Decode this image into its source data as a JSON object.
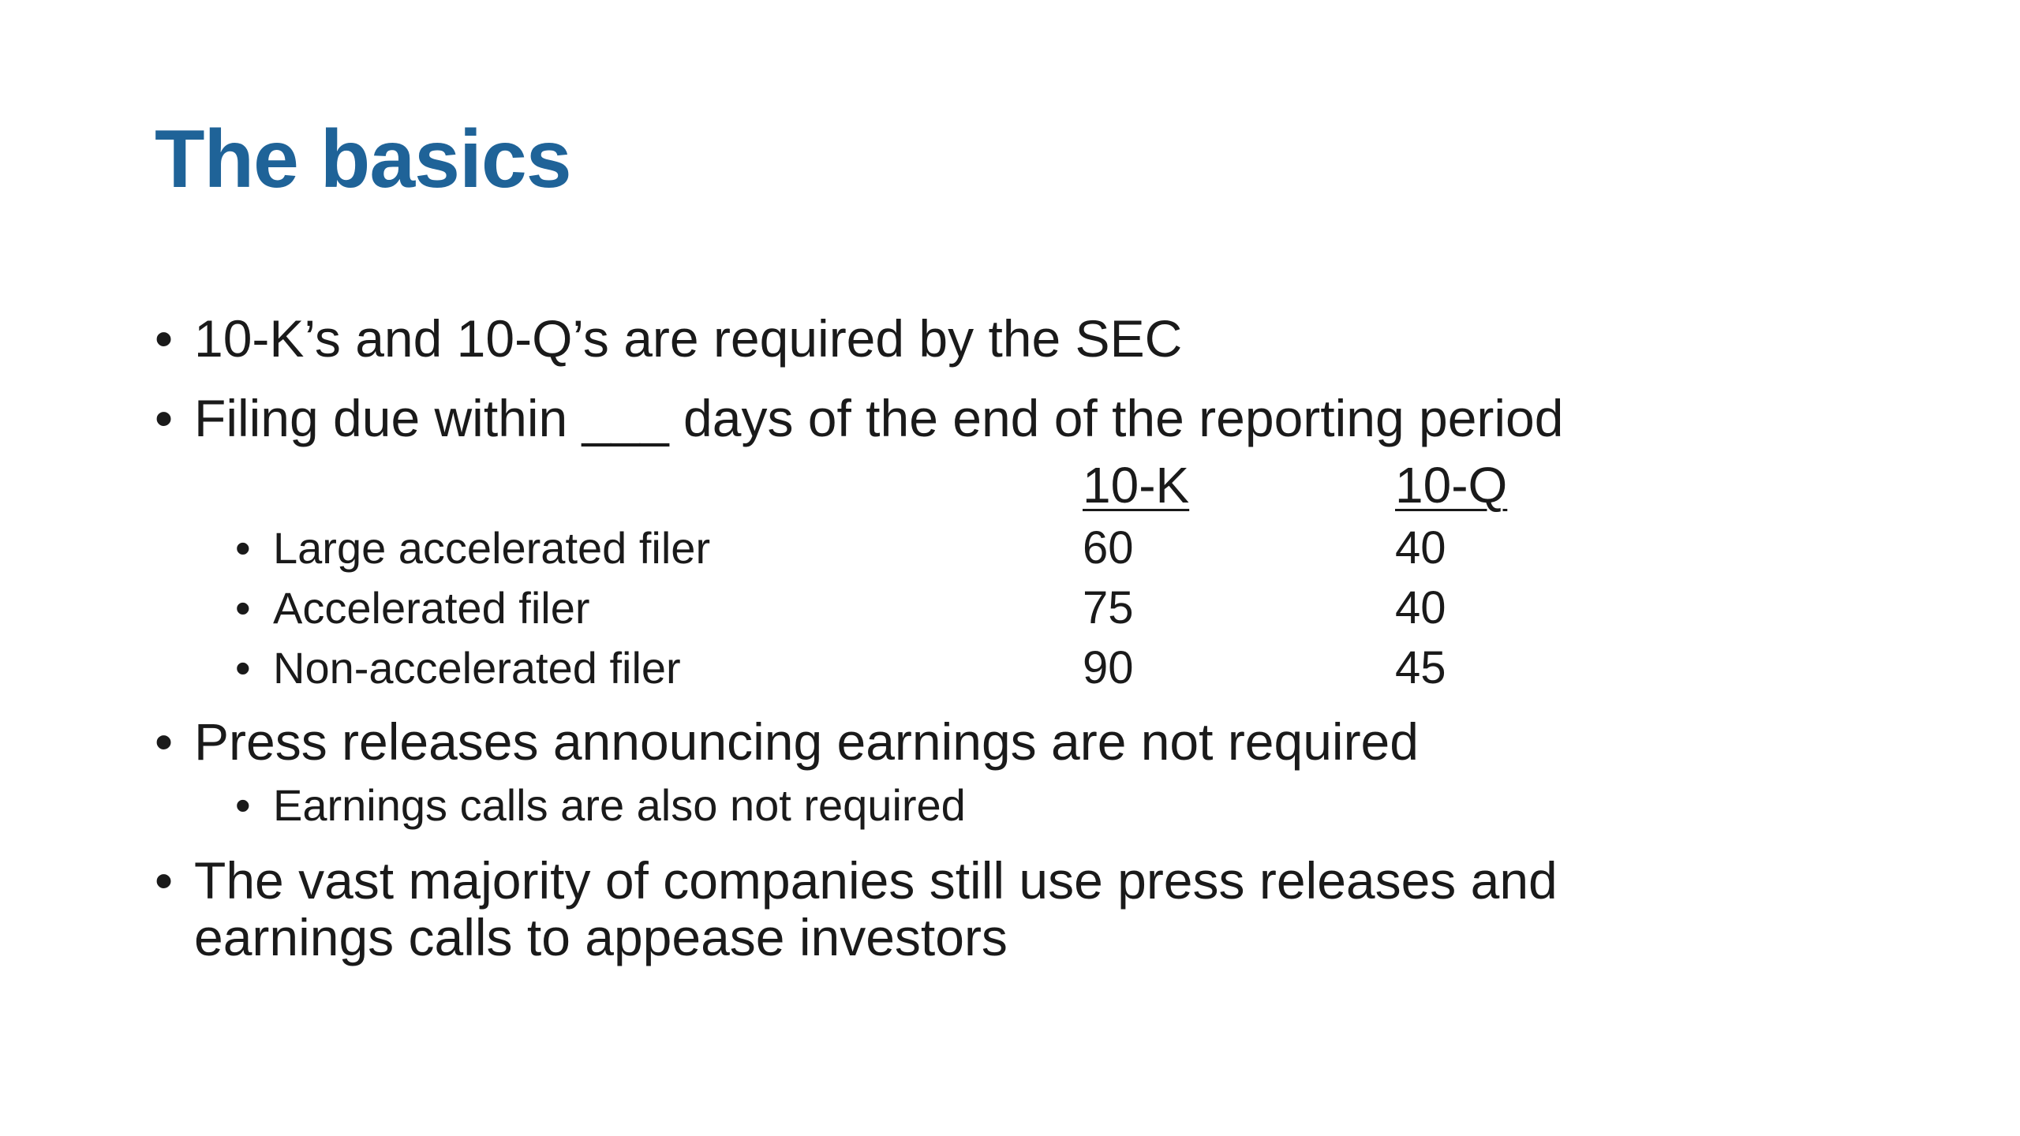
{
  "slide": {
    "title": "The basics",
    "bullets": [
      "10-K’s and 10-Q’s are required by the SEC",
      "Filing due within ___ days of the end of the reporting period",
      "Press releases announcing earnings are not required",
      "The vast majority of companies still use press releases and",
      "earnings calls to appease investors"
    ],
    "sub_bullet_press": "Earnings calls are also not required",
    "bullet_glyph": "•",
    "filing_table": {
      "headers": [
        "10-K",
        "10-Q"
      ],
      "rows": [
        {
          "label": "Large accelerated filer",
          "ten_k": "60",
          "ten_q": "40"
        },
        {
          "label": "Accelerated filer",
          "ten_k": "75",
          "ten_q": "40"
        },
        {
          "label": "Non-accelerated filer",
          "ten_k": "90",
          "ten_q": "45"
        }
      ]
    },
    "colors": {
      "title": "#1f6398",
      "text": "#1a1a1a",
      "background": "#ffffff"
    }
  }
}
